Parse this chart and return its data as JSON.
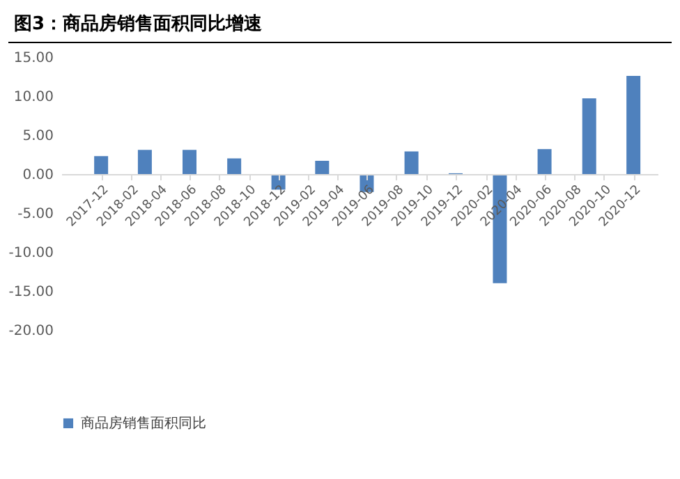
{
  "chart_data": {
    "type": "bar",
    "title": "图3：商品房销售面积同比增速",
    "x": [
      "2017-12",
      "2018-03",
      "2018-06",
      "2018-09",
      "2018-12",
      "2019-03",
      "2019-06",
      "2019-09",
      "2019-12",
      "2020-03",
      "2020-06",
      "2020-09",
      "2020-12"
    ],
    "series": [
      {
        "name": "商品房销售面积同比",
        "color": "#4f81bd",
        "values": [
          2.3,
          3.1,
          3.1,
          2.0,
          -2.0,
          1.7,
          -2.3,
          2.9,
          0.1,
          -14.0,
          3.2,
          9.7,
          12.6
        ]
      }
    ],
    "xlim": [
      "2017-09-10",
      "2021-01-20"
    ],
    "xticks": [
      "2017-12",
      "2018-02",
      "2018-04",
      "2018-06",
      "2018-08",
      "2018-10",
      "2018-12",
      "2019-02",
      "2019-04",
      "2019-06",
      "2019-08",
      "2019-10",
      "2019-12",
      "2020-02",
      "2020-04",
      "2020-06",
      "2020-08",
      "2020-10",
      "2020-12"
    ],
    "ylim": [
      -20,
      15
    ],
    "yticks": [
      {
        "value": -20,
        "label": "-20.00"
      },
      {
        "value": -15,
        "label": "-15.00"
      },
      {
        "value": -10,
        "label": "-10.00"
      },
      {
        "value": -5,
        "label": "-5.00"
      },
      {
        "value": 0,
        "label": "0.00"
      },
      {
        "value": 5,
        "label": "5.00"
      },
      {
        "value": 10,
        "label": "10.00"
      },
      {
        "value": 15,
        "label": "15.00"
      }
    ],
    "grid": false,
    "legend": "bottom"
  }
}
